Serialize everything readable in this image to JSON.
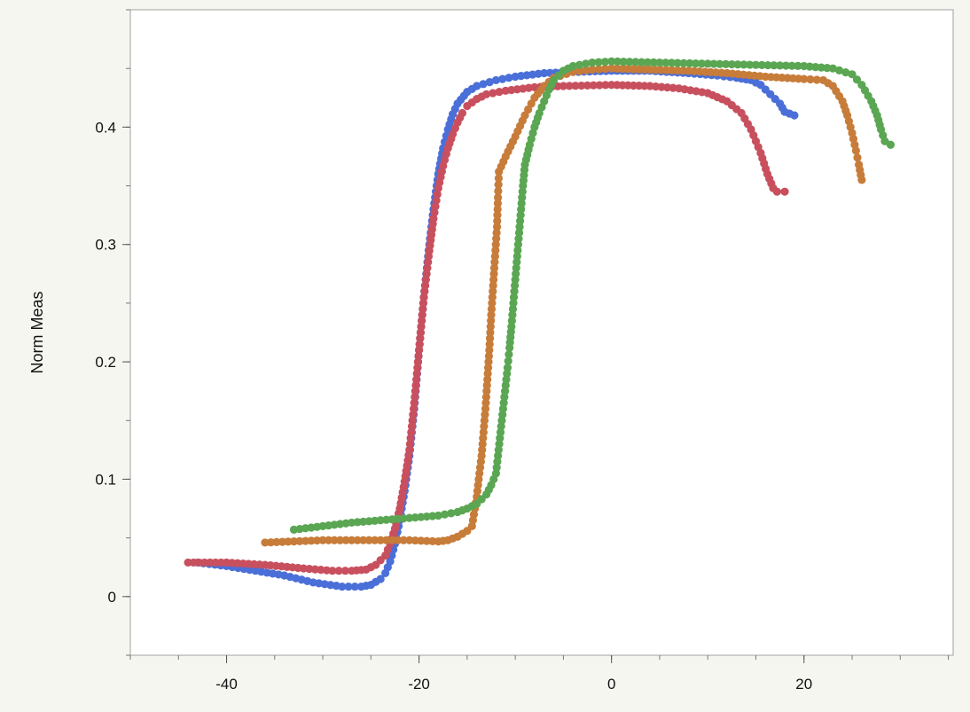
{
  "chart_data": {
    "type": "scatter",
    "title": "",
    "xlabel": "",
    "ylabel": "Norm Meas",
    "xlim": [
      -50,
      35.5
    ],
    "ylim": [
      -0.05,
      0.5
    ],
    "x_ticks": [
      -40,
      -20,
      0,
      20
    ],
    "x_tick_labels": [
      "-40",
      "-20",
      "0",
      "20"
    ],
    "y_ticks": [
      0,
      0.1,
      0.2,
      0.3,
      0.4
    ],
    "y_tick_labels": [
      "0",
      "0.1",
      "0.2",
      "0.3",
      "0.4"
    ],
    "grid": false,
    "legend": "none",
    "colors": {
      "plot_background": "#ffffff",
      "page_background": "#f6f6f1",
      "frame": "#a0a0a0"
    },
    "series": [
      {
        "color": "#4a6fd8",
        "points": [
          [
            -43,
            0.029
          ],
          [
            -40,
            0.026
          ],
          [
            -37,
            0.022
          ],
          [
            -34,
            0.018
          ],
          [
            -31,
            0.012
          ],
          [
            -28,
            0.0085
          ],
          [
            -26,
            0.0085
          ],
          [
            -25,
            0.01
          ],
          [
            -24,
            0.015
          ],
          [
            -23.5,
            0.02
          ],
          [
            -23,
            0.03
          ],
          [
            -22.5,
            0.045
          ],
          [
            -22,
            0.065
          ],
          [
            -21.5,
            0.09
          ],
          [
            -21,
            0.12
          ],
          [
            -20.5,
            0.16
          ],
          [
            -20,
            0.21
          ],
          [
            -19.5,
            0.255
          ],
          [
            -19,
            0.295
          ],
          [
            -18.5,
            0.33
          ],
          [
            -18,
            0.36
          ],
          [
            -17.5,
            0.382
          ],
          [
            -17,
            0.398
          ],
          [
            -16.5,
            0.411
          ],
          [
            -16,
            0.42
          ],
          [
            -15,
            0.43
          ],
          [
            -14,
            0.435
          ],
          [
            -12,
            0.44
          ],
          [
            -10,
            0.443
          ],
          [
            -7,
            0.446
          ],
          [
            -4,
            0.447
          ],
          [
            0,
            0.448
          ],
          [
            4,
            0.448
          ],
          [
            8,
            0.446
          ],
          [
            11,
            0.444
          ],
          [
            13,
            0.442
          ],
          [
            14.5,
            0.44
          ],
          [
            15.5,
            0.436
          ],
          [
            16.5,
            0.428
          ],
          [
            17.5,
            0.42
          ],
          [
            18,
            0.413
          ],
          [
            19,
            0.41
          ]
        ]
      },
      {
        "color": "#c8505e",
        "points": [
          [
            -44,
            0.029
          ],
          [
            -40,
            0.029
          ],
          [
            -36,
            0.027
          ],
          [
            -32,
            0.024
          ],
          [
            -29,
            0.022
          ],
          [
            -27,
            0.022
          ],
          [
            -25.5,
            0.023
          ],
          [
            -24.5,
            0.027
          ],
          [
            -23.5,
            0.035
          ],
          [
            -23,
            0.045
          ],
          [
            -22.5,
            0.058
          ],
          [
            -22,
            0.075
          ],
          [
            -21.5,
            0.098
          ],
          [
            -21,
            0.125
          ],
          [
            -20.5,
            0.165
          ],
          [
            -20,
            0.21
          ],
          [
            -19.5,
            0.255
          ],
          [
            -19,
            0.29
          ],
          [
            -18.5,
            0.322
          ],
          [
            -18,
            0.348
          ],
          [
            -17.5,
            0.367
          ],
          [
            -17,
            0.382
          ],
          [
            -16.5,
            0.394
          ],
          [
            -16,
            0.404
          ],
          [
            -15.5,
            0.412
          ],
          [
            -15,
            0.418
          ],
          [
            -14,
            0.424
          ],
          [
            -13,
            0.428
          ],
          [
            -11,
            0.431
          ],
          [
            -8,
            0.434
          ],
          [
            -5,
            0.435
          ],
          [
            0,
            0.436
          ],
          [
            4,
            0.435
          ],
          [
            7,
            0.433
          ],
          [
            10,
            0.429
          ],
          [
            12,
            0.422
          ],
          [
            13.5,
            0.412
          ],
          [
            14.5,
            0.398
          ],
          [
            15.5,
            0.378
          ],
          [
            16.2,
            0.36
          ],
          [
            16.8,
            0.348
          ],
          [
            17.2,
            0.345
          ],
          [
            18,
            0.345
          ]
        ]
      },
      {
        "color": "#c77c3a",
        "points": [
          [
            -36,
            0.046
          ],
          [
            -33,
            0.047
          ],
          [
            -30,
            0.048
          ],
          [
            -27,
            0.048
          ],
          [
            -24,
            0.048
          ],
          [
            -21,
            0.048
          ],
          [
            -18,
            0.047
          ],
          [
            -17,
            0.048
          ],
          [
            -16,
            0.051
          ],
          [
            -15,
            0.056
          ],
          [
            -14.5,
            0.06
          ],
          [
            -14.3,
            0.07
          ],
          [
            -14,
            0.085
          ],
          [
            -13.8,
            0.1
          ],
          [
            -13.5,
            0.12
          ],
          [
            -13.3,
            0.14
          ],
          [
            -13.1,
            0.16
          ],
          [
            -12.9,
            0.185
          ],
          [
            -12.7,
            0.21
          ],
          [
            -12.5,
            0.24
          ],
          [
            -12.3,
            0.265
          ],
          [
            -12.1,
            0.29
          ],
          [
            -11.9,
            0.315
          ],
          [
            -11.8,
            0.34
          ],
          [
            -11.7,
            0.362
          ],
          [
            -11,
            0.375
          ],
          [
            -10,
            0.392
          ],
          [
            -9,
            0.41
          ],
          [
            -8,
            0.425
          ],
          [
            -7,
            0.435
          ],
          [
            -6,
            0.442
          ],
          [
            -4,
            0.447
          ],
          [
            -2,
            0.449
          ],
          [
            0,
            0.45
          ],
          [
            4,
            0.449
          ],
          [
            8,
            0.448
          ],
          [
            12,
            0.446
          ],
          [
            16,
            0.443
          ],
          [
            20,
            0.441
          ],
          [
            22,
            0.44
          ],
          [
            23,
            0.435
          ],
          [
            24,
            0.422
          ],
          [
            24.5,
            0.41
          ],
          [
            25,
            0.395
          ],
          [
            25.4,
            0.38
          ],
          [
            25.7,
            0.368
          ],
          [
            26,
            0.355
          ]
        ]
      },
      {
        "color": "#5aa653",
        "points": [
          [
            -33,
            0.057
          ],
          [
            -30,
            0.06
          ],
          [
            -27,
            0.063
          ],
          [
            -24,
            0.065
          ],
          [
            -21,
            0.067
          ],
          [
            -18,
            0.069
          ],
          [
            -16,
            0.072
          ],
          [
            -15,
            0.075
          ],
          [
            -14,
            0.079
          ],
          [
            -13,
            0.087
          ],
          [
            -12.5,
            0.095
          ],
          [
            -12,
            0.105
          ],
          [
            -11.8,
            0.12
          ],
          [
            -11.6,
            0.135
          ],
          [
            -11.4,
            0.15
          ],
          [
            -11.2,
            0.165
          ],
          [
            -11,
            0.18
          ],
          [
            -10.8,
            0.195
          ],
          [
            -10.6,
            0.212
          ],
          [
            -10.4,
            0.23
          ],
          [
            -10.2,
            0.25
          ],
          [
            -10,
            0.27
          ],
          [
            -9.8,
            0.29
          ],
          [
            -9.6,
            0.31
          ],
          [
            -9.4,
            0.33
          ],
          [
            -9.2,
            0.35
          ],
          [
            -9,
            0.368
          ],
          [
            -8.5,
            0.385
          ],
          [
            -8,
            0.4
          ],
          [
            -7.5,
            0.412
          ],
          [
            -7,
            0.422
          ],
          [
            -6.5,
            0.432
          ],
          [
            -6,
            0.44
          ],
          [
            -5,
            0.448
          ],
          [
            -4,
            0.452
          ],
          [
            -2,
            0.455
          ],
          [
            0,
            0.456
          ],
          [
            5,
            0.455
          ],
          [
            10,
            0.454
          ],
          [
            15,
            0.453
          ],
          [
            20,
            0.452
          ],
          [
            23,
            0.45
          ],
          [
            25,
            0.445
          ],
          [
            26,
            0.436
          ],
          [
            27,
            0.422
          ],
          [
            27.6,
            0.41
          ],
          [
            28,
            0.398
          ],
          [
            28.4,
            0.388
          ],
          [
            29,
            0.385
          ]
        ]
      }
    ]
  }
}
